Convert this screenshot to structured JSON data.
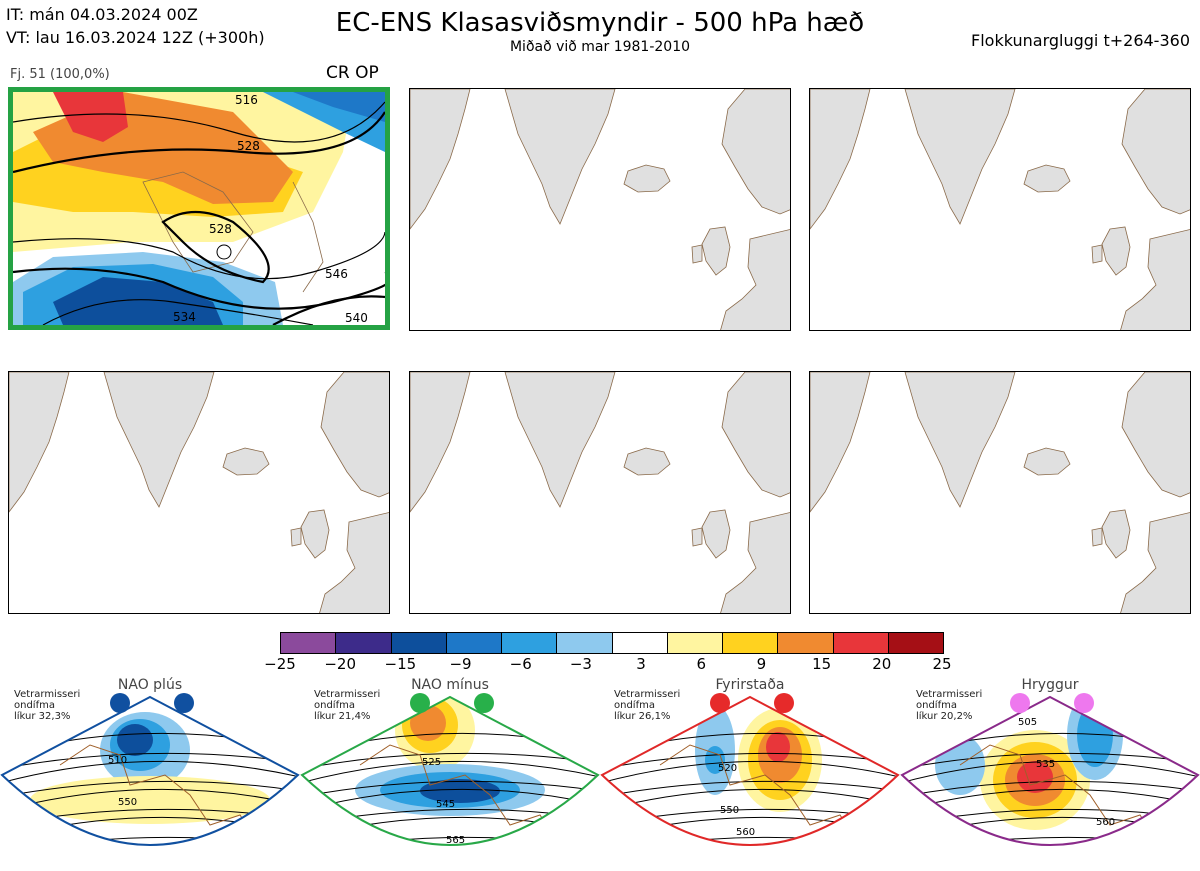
{
  "header": {
    "init_time": "IT: mán 04.03.2024 00Z",
    "valid_time": "VT: lau 16.03.2024 12Z  (+300h)",
    "title": "EC-ENS Klasasviðsmyndir - 500 hPa hæð",
    "subtitle": "Miðað við mar 1981-2010",
    "cluster_window": "Flokkunargluggi t+264-360"
  },
  "panels": [
    {
      "label": "Fj. 51 (100,0%)",
      "tag": "CR OP",
      "active": true,
      "contour_labels": [
        "516",
        "528",
        "528",
        "546",
        "534",
        "540"
      ]
    },
    {
      "label": "",
      "tag": "",
      "active": false
    },
    {
      "label": "",
      "tag": "",
      "active": false
    },
    {
      "label": "",
      "tag": "",
      "active": false
    },
    {
      "label": "",
      "tag": "",
      "active": false
    },
    {
      "label": "",
      "tag": "",
      "active": false
    }
  ],
  "colorbar": {
    "ticks": [
      "−25",
      "−20",
      "−15",
      "−9",
      "−6",
      "−3",
      "3",
      "6",
      "9",
      "15",
      "20",
      "25"
    ],
    "colors": [
      "#8b4a9c",
      "#3d2b8a",
      "#0d4f9c",
      "#1e78c8",
      "#2ea0e0",
      "#8ec9ee",
      "#ffffff",
      "#fff5a0",
      "#ffd21f",
      "#f08a30",
      "#e8363a",
      "#a50f15"
    ]
  },
  "regimes": [
    {
      "name": "NAO plús",
      "note": [
        "Vetrarmisseri",
        "ondífma",
        "líkur 32,3%"
      ],
      "frame_color": "#1050a0",
      "dot_color": "#1050a0",
      "contour_labels": [
        "510",
        "550"
      ]
    },
    {
      "name": "NAO mínus",
      "note": [
        "Vetrarmisseri",
        "ondífma",
        "líkur 21,4%"
      ],
      "frame_color": "#28a848",
      "dot_color": "#28b04a",
      "contour_labels": [
        "525",
        "545",
        "565"
      ]
    },
    {
      "name": "Fyrirstaða",
      "note": [
        "Vetrarmisseri",
        "ondífma",
        "líkur 26,1%"
      ],
      "frame_color": "#e02828",
      "dot_color": "#e62a2a",
      "contour_labels": [
        "520",
        "550",
        "560"
      ]
    },
    {
      "name": "Hryggur",
      "note": [
        "Vetrarmisseri",
        "ondífma",
        "líkur 20,2%"
      ],
      "frame_color": "#8a2a8a",
      "dot_color": "#ee78ee",
      "contour_labels": [
        "505",
        "535",
        "560"
      ]
    }
  ],
  "colors": {
    "land": "#e0e0e0",
    "coast": "#8a6a4a",
    "active_frame": "#25a244"
  }
}
